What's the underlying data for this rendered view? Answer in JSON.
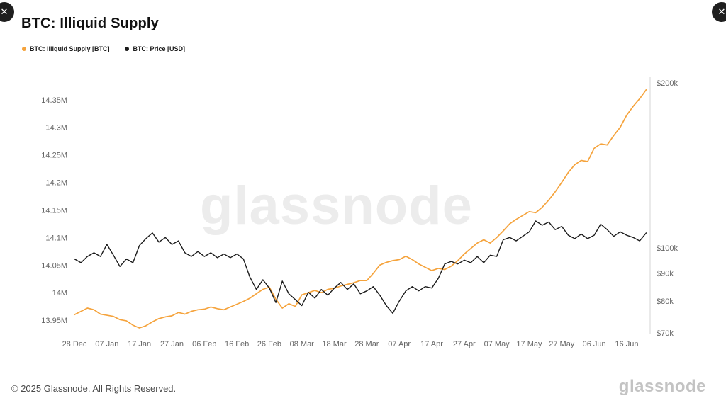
{
  "header": {
    "title": "BTC: Illiquid Supply"
  },
  "nav": {
    "left_glyph": "✕",
    "right_glyph": "✕"
  },
  "legend": {
    "items": [
      {
        "label": "BTC: Illiquid Supply [BTC]",
        "color": "#F5A33C"
      },
      {
        "label": "BTC: Price [USD]",
        "color": "#1B1B1B"
      }
    ]
  },
  "footer": {
    "copyright": "© 2025 Glassnode. All Rights Reserved.",
    "watermark": "glassnode",
    "brand": "glassnode"
  },
  "chart_data": {
    "type": "line",
    "title": "BTC: Illiquid Supply",
    "grid": false,
    "legend_position": "top-left",
    "x_unit": "days since 28 Dec",
    "x_domain": [
      0,
      177
    ],
    "x_ticks": {
      "days": [
        0,
        10,
        20,
        30,
        40,
        50,
        60,
        70,
        80,
        90,
        100,
        110,
        120,
        130,
        140,
        150,
        160,
        170
      ],
      "labels": [
        "28 Dec",
        "07 Jan",
        "17 Jan",
        "27 Jan",
        "06 Feb",
        "16 Feb",
        "26 Feb",
        "08 Mar",
        "18 Mar",
        "28 Mar",
        "07 Apr",
        "17 Apr",
        "27 Apr",
        "07 May",
        "17 May",
        "27 May",
        "06 Jun",
        "16 Jun"
      ]
    },
    "left_axis": {
      "name": "BTC: Illiquid Supply [BTC]",
      "scale": "linear",
      "range": [
        13.927,
        14.387
      ],
      "tick_values": [
        13.95,
        14.0,
        14.05,
        14.1,
        14.15,
        14.2,
        14.25,
        14.3,
        14.35
      ],
      "tick_labels": [
        "13.95M",
        "14M",
        "14.05M",
        "14.1M",
        "14.15M",
        "14.2M",
        "14.25M",
        "14.3M",
        "14.35M"
      ]
    },
    "right_axis": {
      "name": "BTC: Price [USD]",
      "scale": "log",
      "range": [
        70,
        203
      ],
      "tick_values": [
        70,
        80,
        90,
        100,
        200
      ],
      "tick_labels": [
        "$70k",
        "$80k",
        "$90k",
        "$100k",
        "$200k"
      ]
    },
    "x": [
      0,
      2,
      4,
      6,
      8,
      10,
      12,
      14,
      16,
      18,
      20,
      22,
      24,
      26,
      28,
      30,
      32,
      34,
      36,
      38,
      40,
      42,
      44,
      46,
      48,
      50,
      52,
      54,
      56,
      58,
      60,
      62,
      64,
      66,
      68,
      70,
      72,
      74,
      76,
      78,
      80,
      82,
      84,
      86,
      88,
      90,
      92,
      94,
      96,
      98,
      100,
      102,
      104,
      106,
      108,
      110,
      112,
      114,
      116,
      118,
      120,
      122,
      124,
      126,
      128,
      130,
      132,
      134,
      136,
      138,
      140,
      142,
      144,
      146,
      148,
      150,
      152,
      154,
      156,
      158,
      160,
      162,
      164,
      166,
      168,
      170,
      172,
      174,
      176
    ],
    "series": [
      {
        "name": "BTC: Illiquid Supply [BTC]",
        "axis": "left",
        "unit": "M BTC",
        "color": "#F5A33C",
        "values": [
          13.96,
          13.966,
          13.972,
          13.969,
          13.961,
          13.959,
          13.957,
          13.951,
          13.949,
          13.941,
          13.936,
          13.94,
          13.947,
          13.953,
          13.956,
          13.958,
          13.964,
          13.961,
          13.966,
          13.969,
          13.97,
          13.974,
          13.971,
          13.969,
          13.974,
          13.979,
          13.984,
          13.99,
          13.998,
          14.006,
          14.01,
          13.988,
          13.972,
          13.98,
          13.975,
          13.996,
          14.0,
          14.004,
          14.0,
          14.006,
          14.008,
          14.012,
          14.015,
          14.018,
          14.022,
          14.022,
          14.035,
          14.05,
          14.055,
          14.058,
          14.06,
          14.066,
          14.06,
          14.052,
          14.046,
          14.04,
          14.044,
          14.042,
          14.048,
          14.058,
          14.07,
          14.08,
          14.09,
          14.096,
          14.09,
          14.1,
          14.112,
          14.125,
          14.133,
          14.14,
          14.147,
          14.145,
          14.155,
          14.168,
          14.183,
          14.2,
          14.218,
          14.232,
          14.24,
          14.238,
          14.262,
          14.27,
          14.268,
          14.285,
          14.3,
          14.322,
          14.338,
          14.352,
          14.368
        ]
      },
      {
        "name": "BTC: Price [USD]",
        "axis": "right",
        "unit": "$k",
        "color": "#1B1B1B",
        "values": [
          95.5,
          94.0,
          96.5,
          98.0,
          96.5,
          101.5,
          97.0,
          92.5,
          95.5,
          94.0,
          101.0,
          104.0,
          106.5,
          102.5,
          104.5,
          101.5,
          103.0,
          98.0,
          96.5,
          98.5,
          96.5,
          98.0,
          96.0,
          97.5,
          96.0,
          97.5,
          95.5,
          88.5,
          84.0,
          87.5,
          84.5,
          79.5,
          87.0,
          82.5,
          80.5,
          78.5,
          83.0,
          81.0,
          84.0,
          82.0,
          84.5,
          86.5,
          84.0,
          86.0,
          82.5,
          83.5,
          85.0,
          82.0,
          78.5,
          76.0,
          80.0,
          83.5,
          85.0,
          83.5,
          85.0,
          84.5,
          88.0,
          93.5,
          94.5,
          93.5,
          95.0,
          94.0,
          96.5,
          94.0,
          97.0,
          96.5,
          103.5,
          104.5,
          103.0,
          105.0,
          107.0,
          112.0,
          110.0,
          111.5,
          108.0,
          109.5,
          105.5,
          104.0,
          106.0,
          104.0,
          105.5,
          110.5,
          108.0,
          105.0,
          107.0,
          105.5,
          104.5,
          103.0,
          106.5
        ]
      }
    ]
  }
}
